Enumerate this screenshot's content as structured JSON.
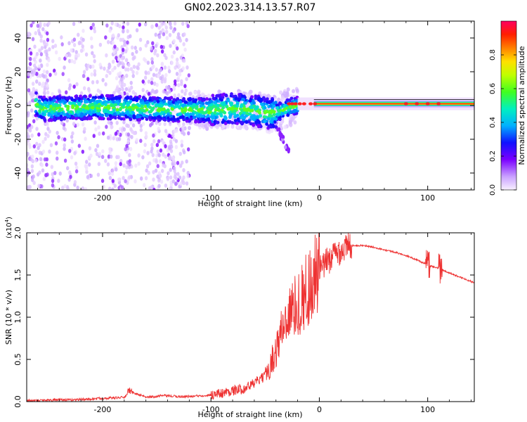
{
  "title": "GN02.2023.314.13.57.R07",
  "chart_data": [
    {
      "type": "heatmap",
      "xlabel": "Height of straight line (km)",
      "ylabel": "Frequency (Hz)",
      "xlim": [
        -270,
        143
      ],
      "ylim": [
        -50,
        50
      ],
      "xticks": [
        -200,
        -100,
        0,
        100
      ],
      "xtick_labels": [
        "-200",
        "-100",
        "0",
        "100"
      ],
      "yticks": [
        -40,
        -20,
        0,
        20,
        40
      ],
      "ytick_labels": [
        "-40",
        "-20",
        "0",
        "20",
        "40"
      ],
      "colorbar": {
        "label": "Normalized spectral amplitude",
        "range": [
          0,
          1
        ],
        "ticks": [
          0,
          0.2,
          0.4,
          0.6,
          0.8
        ],
        "tick_labels": [
          "0.0",
          "0.2",
          "0.4",
          "0.6",
          "0.8"
        ]
      },
      "ridge": {
        "x": [
          -260,
          -200,
          -150,
          -100,
          -80,
          -60,
          -45,
          -35,
          -28,
          -20,
          0,
          50,
          100,
          143
        ],
        "y": [
          -2,
          -1,
          -2,
          -3,
          -2,
          -3,
          -5,
          -3,
          -1,
          0,
          1,
          1,
          1,
          1
        ]
      }
    },
    {
      "type": "line",
      "xlabel": "Height of straight line (km)",
      "ylabel": "SNR (10 * v/v)",
      "y_multiplier": "(x10",
      "y_multiplier_exp": "4",
      "y_multiplier_close": ")",
      "xlim": [
        -270,
        143
      ],
      "ylim": [
        0,
        2
      ],
      "xticks": [
        -200,
        -100,
        0,
        100
      ],
      "xtick_labels": [
        "-200",
        "-100",
        "0",
        "100"
      ],
      "yticks": [
        0,
        0.5,
        1,
        1.5,
        2
      ],
      "ytick_labels": [
        "0.0",
        "0.5",
        "1.0",
        "1.5",
        "2.0"
      ],
      "color": "#ee3333",
      "series": [
        {
          "x": [
            -270,
            -250,
            -230,
            -210,
            -200,
            -180,
            -175,
            -160,
            -145,
            -130,
            -120,
            -110,
            -100,
            -90,
            -80,
            -70,
            -60,
            -50,
            -45,
            -40,
            -35,
            -30,
            -25,
            -20,
            -15,
            -10,
            -5,
            0,
            10,
            20,
            30,
            40,
            50,
            60,
            70,
            80,
            90,
            95,
            100,
            105,
            110,
            115,
            125,
            135,
            143
          ],
          "y": [
            0.01,
            0.02,
            0.02,
            0.03,
            0.04,
            0.05,
            0.12,
            0.05,
            0.07,
            0.06,
            0.06,
            0.07,
            0.08,
            0.1,
            0.13,
            0.15,
            0.22,
            0.3,
            0.45,
            0.6,
            0.85,
            1.0,
            1.1,
            1.15,
            1.25,
            1.35,
            1.45,
            1.55,
            1.7,
            1.8,
            1.85,
            1.85,
            1.83,
            1.8,
            1.77,
            1.73,
            1.68,
            1.65,
            1.62,
            1.6,
            1.58,
            1.55,
            1.5,
            1.45,
            1.41
          ]
        }
      ]
    }
  ]
}
